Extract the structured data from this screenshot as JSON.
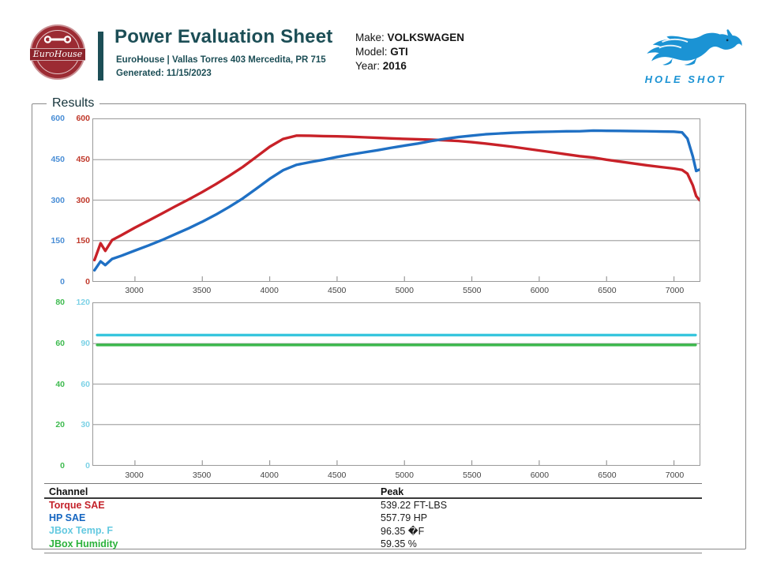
{
  "header": {
    "title": "Power Evaluation Sheet",
    "subtitle": "EuroHouse | Vallas Torres 403 Mercedita, PR 715",
    "generated": "Generated: 11/15/2023",
    "logo_script": "EuroHouse",
    "vehicle": {
      "make_label": "Make:",
      "make": "VOLKSWAGEN",
      "model_label": "Model:",
      "model": "GTI",
      "year_label": "Year:",
      "year": "2016"
    },
    "brand": {
      "name": "HOLE SHOT",
      "color": "#1b93d4"
    }
  },
  "results_legend": "Results",
  "chart_data": [
    {
      "type": "line",
      "title": "Power / Torque vs RPM",
      "x_range": [
        2690,
        7190
      ],
      "x_ticks": [
        3000,
        3500,
        4000,
        4500,
        5000,
        5500,
        6000,
        6500,
        7000
      ],
      "axes_left": [
        {
          "name": "hp-axis",
          "color": "#4a8ed6",
          "max": 600,
          "ticks": [
            600,
            450,
            300,
            150,
            0
          ]
        },
        {
          "name": "torque-axis",
          "color": "#c0392b",
          "max": 600,
          "ticks": [
            600,
            450,
            300,
            150,
            0
          ]
        }
      ],
      "grid_on": true,
      "series": [
        {
          "name": "Torque SAE",
          "unit": "FT-LBS",
          "color": "#c82128",
          "width": 3.4,
          "max": 600,
          "x": [
            2700,
            2745,
            2780,
            2830,
            2900,
            3000,
            3100,
            3200,
            3300,
            3400,
            3500,
            3600,
            3700,
            3800,
            3900,
            4000,
            4100,
            4200,
            4300,
            4400,
            4500,
            4600,
            4700,
            4800,
            4900,
            5000,
            5100,
            5200,
            5300,
            5400,
            5500,
            5600,
            5700,
            5800,
            5900,
            6000,
            6100,
            6200,
            6300,
            6400,
            6500,
            6600,
            6700,
            6800,
            6900,
            7000,
            7060,
            7100,
            7140,
            7165,
            7190
          ],
          "values": [
            78,
            140,
            112,
            152,
            170,
            198,
            224,
            250,
            277,
            303,
            330,
            359,
            390,
            423,
            460,
            498,
            527,
            539.2,
            538.5,
            537.5,
            536.5,
            535,
            533,
            531,
            529,
            527,
            525.5,
            524,
            522,
            519,
            515,
            510,
            504,
            498,
            491,
            484,
            477,
            470,
            463,
            458,
            450,
            443,
            436,
            429,
            423,
            417,
            412,
            398,
            355,
            315,
            300
          ]
        },
        {
          "name": "HP SAE",
          "unit": "HP",
          "color": "#1f70c4",
          "width": 3.4,
          "max": 600,
          "x": [
            2700,
            2745,
            2780,
            2830,
            2900,
            3000,
            3100,
            3200,
            3300,
            3400,
            3500,
            3600,
            3700,
            3800,
            3900,
            4000,
            4100,
            4200,
            4300,
            4400,
            4500,
            4600,
            4700,
            4800,
            4900,
            5000,
            5100,
            5200,
            5300,
            5400,
            5500,
            5600,
            5700,
            5800,
            5900,
            6000,
            6100,
            6200,
            6300,
            6400,
            6500,
            6600,
            6700,
            6800,
            6900,
            7000,
            7060,
            7100,
            7140,
            7165,
            7190
          ],
          "values": [
            40,
            73,
            59,
            82,
            94,
            113,
            132,
            152,
            174,
            196,
            220,
            246,
            275,
            306,
            342,
            379,
            411,
            431,
            441,
            450,
            460,
            469,
            477,
            485,
            494,
            502,
            510,
            519,
            527,
            534,
            539,
            544,
            547,
            550,
            551.6,
            553,
            554,
            555,
            555.4,
            557.8,
            557,
            556.7,
            556,
            555.5,
            554.5,
            553.5,
            551,
            528,
            462,
            408,
            413
          ]
        }
      ]
    },
    {
      "type": "line",
      "title": "Environment vs RPM",
      "x_range": [
        2690,
        7190
      ],
      "x_ticks": [
        3000,
        3500,
        4000,
        4500,
        5000,
        5500,
        6000,
        6500,
        7000
      ],
      "axes_left": [
        {
          "name": "humidity-axis",
          "color": "#3fbb50",
          "max": 80,
          "ticks": [
            80,
            60,
            40,
            20,
            0
          ]
        },
        {
          "name": "temp-axis",
          "color": "#7dd2e6",
          "max": 120,
          "ticks": [
            120,
            90,
            60,
            30,
            0
          ]
        }
      ],
      "grid_on": true,
      "series": [
        {
          "name": "JBox Temp. F",
          "unit": "F",
          "color": "#38c6de",
          "width": 3.4,
          "max": 120,
          "x": [
            2720,
            7160
          ],
          "values": [
            96.35,
            96.35
          ]
        },
        {
          "name": "JBox Humidity",
          "unit": "%",
          "color": "#3bb84b",
          "width": 3.4,
          "max": 80,
          "x": [
            2720,
            7160
          ],
          "values": [
            59.35,
            59.35
          ]
        }
      ]
    }
  ],
  "table": {
    "channel_header": "Channel",
    "peak_header": "Peak",
    "rows": [
      {
        "channel": "Torque SAE",
        "peak": "539.22 FT-LBS",
        "color": "#c4232b"
      },
      {
        "channel": "HP SAE",
        "peak": "557.79 HP",
        "color": "#1565c0"
      },
      {
        "channel": "JBox Temp. F",
        "peak": "96.35 �F",
        "color": "#63c9e0"
      },
      {
        "channel": "JBox Humidity",
        "peak": "59.35 %",
        "color": "#2cb23c"
      }
    ]
  }
}
